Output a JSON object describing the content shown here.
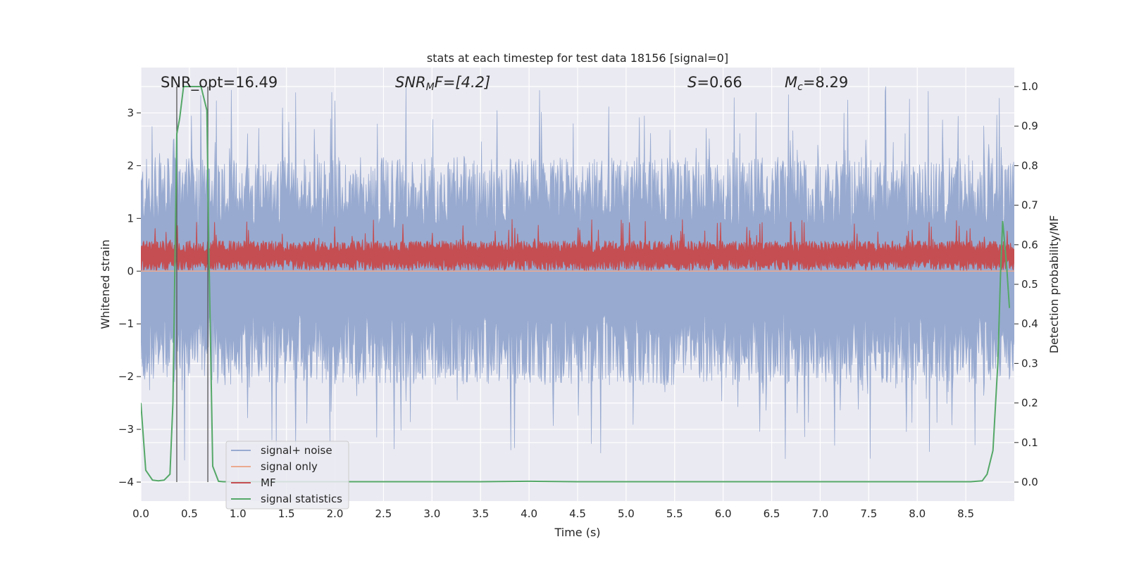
{
  "chart_data": {
    "type": "line",
    "title": "stats at each timestep for test data 18156 [signal=0]",
    "xlabel": "Time (s)",
    "ylabel": "Whitened strain",
    "ylabel_right": "Detection probability/MF",
    "xlim": [
      0.0,
      9.0
    ],
    "ylim": [
      -4.36,
      3.86
    ],
    "ylim_right": [
      -0.048,
      1.048
    ],
    "x_ticks": [
      0.0,
      0.5,
      1.0,
      1.5,
      2.0,
      2.5,
      3.0,
      3.5,
      4.0,
      4.5,
      5.0,
      5.5,
      6.0,
      6.5,
      7.0,
      7.5,
      8.0,
      8.5
    ],
    "x_tick_labels": [
      "0.0",
      "0.5",
      "1.0",
      "1.5",
      "2.0",
      "2.5",
      "3.0",
      "3.5",
      "4.0",
      "4.5",
      "5.0",
      "5.5",
      "6.0",
      "6.5",
      "7.0",
      "7.5",
      "8.0",
      "8.5"
    ],
    "y_ticks": [
      -4,
      -3,
      -2,
      -1,
      0,
      1,
      2,
      3
    ],
    "y_tick_labels": [
      "−4",
      "−3",
      "−2",
      "−1",
      "0",
      "1",
      "2",
      "3"
    ],
    "y_ticks_right": [
      0.0,
      0.1,
      0.2,
      0.3,
      0.4,
      0.5,
      0.6,
      0.7,
      0.8,
      0.9,
      1.0
    ],
    "y_tick_labels_right": [
      "0.0",
      "0.1",
      "0.2",
      "0.3",
      "0.4",
      "0.5",
      "0.6",
      "0.7",
      "0.8",
      "0.9",
      "1.0"
    ],
    "grid": true,
    "legend_placement": "lower-left",
    "annotations": {
      "snr_opt": "SNR_opt=16.49",
      "snr_mf_prefix": "SNR",
      "snr_mf_sub": "M",
      "snr_mf_suffix": "F=[4.2]",
      "s_prefix": "S",
      "s_value": "=0.66",
      "mc_prefix": "M",
      "mc_sub": "c",
      "mc_value": "=8.29"
    },
    "vlines_x": [
      0.37,
      0.69
    ],
    "series": [
      {
        "name": "signal+ noise",
        "color": "#98aad0",
        "style": "noise",
        "upper_envelope_typical": 1.8,
        "upper_envelope_peak": 3.5,
        "lower_envelope_typical": -1.8,
        "lower_envelope_peak": -3.6
      },
      {
        "name": "signal only",
        "color": "#ebaa90",
        "style": "flat",
        "y": 0.0
      },
      {
        "name": "MF",
        "color": "#c44e52",
        "style": "noise",
        "axis": "right",
        "center": 0.57,
        "upper_envelope_peak": 0.665,
        "lower_envelope": 0.535
      },
      {
        "name": "signal statistics",
        "color": "#55a868",
        "style": "line",
        "axis": "right",
        "x": [
          0.0,
          0.05,
          0.12,
          0.18,
          0.24,
          0.3,
          0.33,
          0.37,
          0.4,
          0.44,
          0.5,
          0.56,
          0.62,
          0.68,
          0.7,
          0.74,
          0.8,
          0.85,
          1.0,
          2.0,
          3.0,
          3.5,
          4.0,
          4.5,
          5.0,
          6.0,
          7.0,
          8.0,
          8.55,
          8.67,
          8.72,
          8.78,
          8.83,
          8.86,
          8.88,
          8.92,
          8.95
        ],
        "y": [
          0.2,
          0.03,
          0.005,
          0.003,
          0.005,
          0.02,
          0.2,
          0.88,
          0.92,
          1.0,
          1.0,
          1.0,
          1.0,
          0.94,
          0.6,
          0.04,
          0.002,
          0.001,
          0.001,
          0.001,
          0.001,
          0.001,
          0.002,
          0.001,
          0.001,
          0.001,
          0.001,
          0.001,
          0.001,
          0.003,
          0.02,
          0.08,
          0.3,
          0.54,
          0.66,
          0.55,
          0.44
        ]
      }
    ]
  }
}
